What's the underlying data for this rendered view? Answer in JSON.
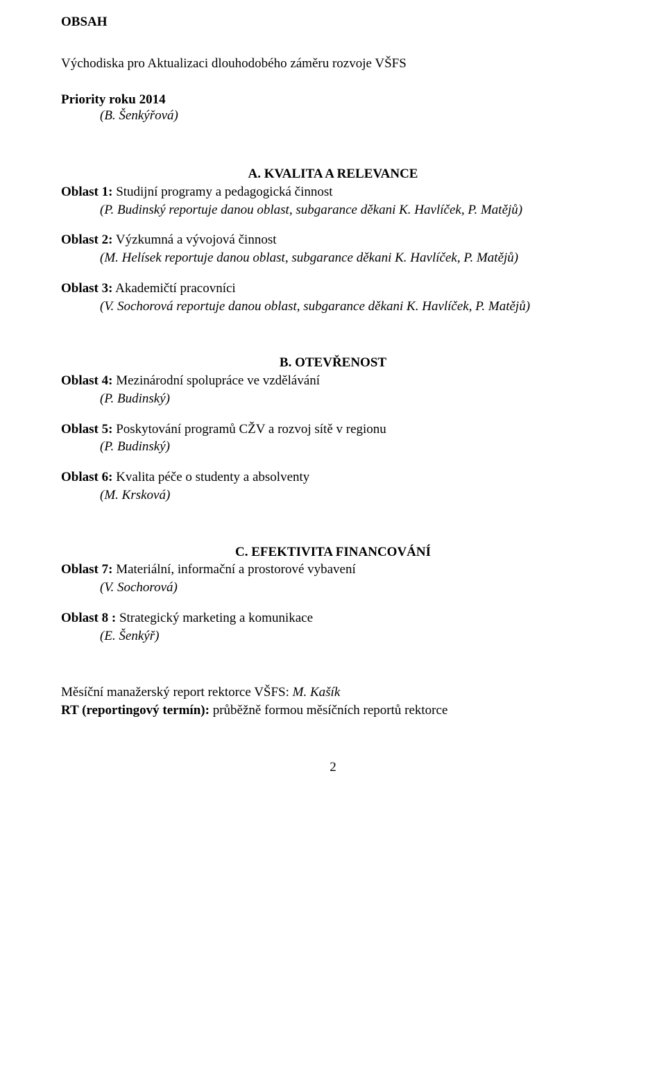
{
  "page_title": "OBSAH",
  "intro_line": "Východiska pro Aktualizaci dlouhodobého záměru rozvoje VŠFS",
  "priority_line": "Priority roku 2014",
  "priority_author": "(B. Šenkýřová)",
  "sections": {
    "A": {
      "heading": "A.   KVALITA  A  RELEVANCE",
      "oblasti": [
        {
          "label": "Oblast 1:",
          "title": " Studijní programy a pedagogická činnost",
          "author": "(P. Budinský reportuje danou oblast, subgarance děkani K. Havlíček, P. Matějů)"
        },
        {
          "label": "Oblast 2:",
          "title": " Výzkumná a vývojová činnost",
          "author": "(M. Helísek reportuje danou oblast, subgarance děkani K. Havlíček, P. Matějů)"
        },
        {
          "label": "Oblast 3:",
          "title": " Akademičtí pracovníci",
          "author": "(V. Sochorová reportuje danou oblast, subgarance děkani K. Havlíček, P. Matějů)"
        }
      ]
    },
    "B": {
      "heading": "B.   OTEVŘENOST",
      "oblasti": [
        {
          "label": "Oblast 4:",
          "title": " Mezinárodní spolupráce ve vzdělávání",
          "author": "(P. Budinský)"
        },
        {
          "label": "Oblast 5:",
          "title": " Poskytování programů CŽV a rozvoj sítě v regionu",
          "author": "(P. Budinský)"
        },
        {
          "label": "Oblast 6:",
          "title": " Kvalita péče o studenty a absolventy",
          "author": "(M. Krsková)"
        }
      ]
    },
    "C": {
      "heading": "C.   EFEKTIVITA  FINANCOVÁNÍ",
      "oblasti": [
        {
          "label": "Oblast 7:",
          "title": " Materiální, informační a prostorové vybavení",
          "author": "(V. Sochorová)"
        },
        {
          "label": "Oblast 8 :",
          "title": " Strategický marketing a komunikace",
          "author": "(E. Šenkýř)"
        }
      ]
    }
  },
  "footer": {
    "line1_label": "Měsíční manažerský report rektorce VŠFS: ",
    "line1_name": "M. Kašík",
    "line2_bold": "RT (reportingový termín): ",
    "line2_text": "průběžně formou měsíčních reportů rektorce"
  },
  "page_number": "2"
}
